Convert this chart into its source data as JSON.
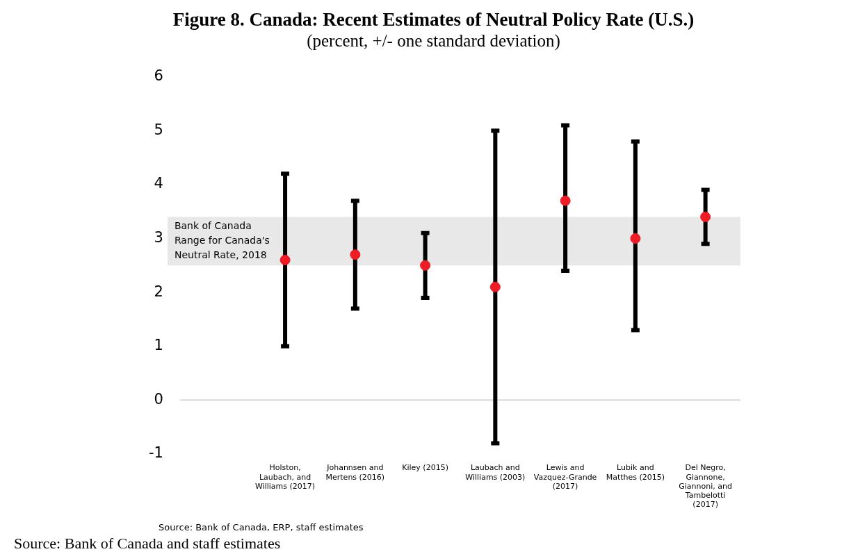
{
  "chart_data": {
    "type": "scatter",
    "title": "Figure 8. Canada: Recent Estimates of Neutral Policy Rate (U.S.)",
    "subtitle": "(percent, +/- one standard deviation)",
    "categories": [
      null,
      "Holston, Laubach, and Williams (2017)",
      "Johannsen and Mertens (2016)",
      "Kiley (2015)",
      "Laubach and Williams (2003)",
      "Lewis and Vazquez-Grande (2017)",
      "Lubik and Matthes (2015)",
      "Del Negro, Giannone, Giannoni, and Tambelotti (2017)"
    ],
    "values": [
      null,
      2.6,
      2.7,
      2.5,
      2.1,
      3.7,
      3.0,
      3.4
    ],
    "color": "#ee1c25",
    "errors": [
      null,
      [
        1.0,
        4.2
      ],
      [
        1.7,
        3.7
      ],
      [
        1.9,
        3.1
      ],
      [
        -0.8,
        5.0
      ],
      [
        2.4,
        5.1
      ],
      [
        1.3,
        4.8
      ],
      [
        2.9,
        3.9
      ]
    ],
    "marker": "circle",
    "ylim": [
      -1,
      6
    ],
    "yticks": [
      -1,
      0,
      1,
      2,
      3,
      4,
      5,
      6
    ],
    "grid": false,
    "legend": false,
    "bands": [
      {
        "axis": "y",
        "from": 2.5,
        "to": 3.4,
        "label": "Bank of Canada Range for Canada's Neutral Rate, 2018",
        "color": "#e8e8e8"
      }
    ],
    "ref_lines": [
      {
        "axis": "y",
        "value": 0,
        "color": "#d9d9d9"
      }
    ],
    "annotations": [
      "Source: Bank of Canada, ERP, staff estimates",
      "Source: Bank of Canada and staff estimates"
    ]
  }
}
